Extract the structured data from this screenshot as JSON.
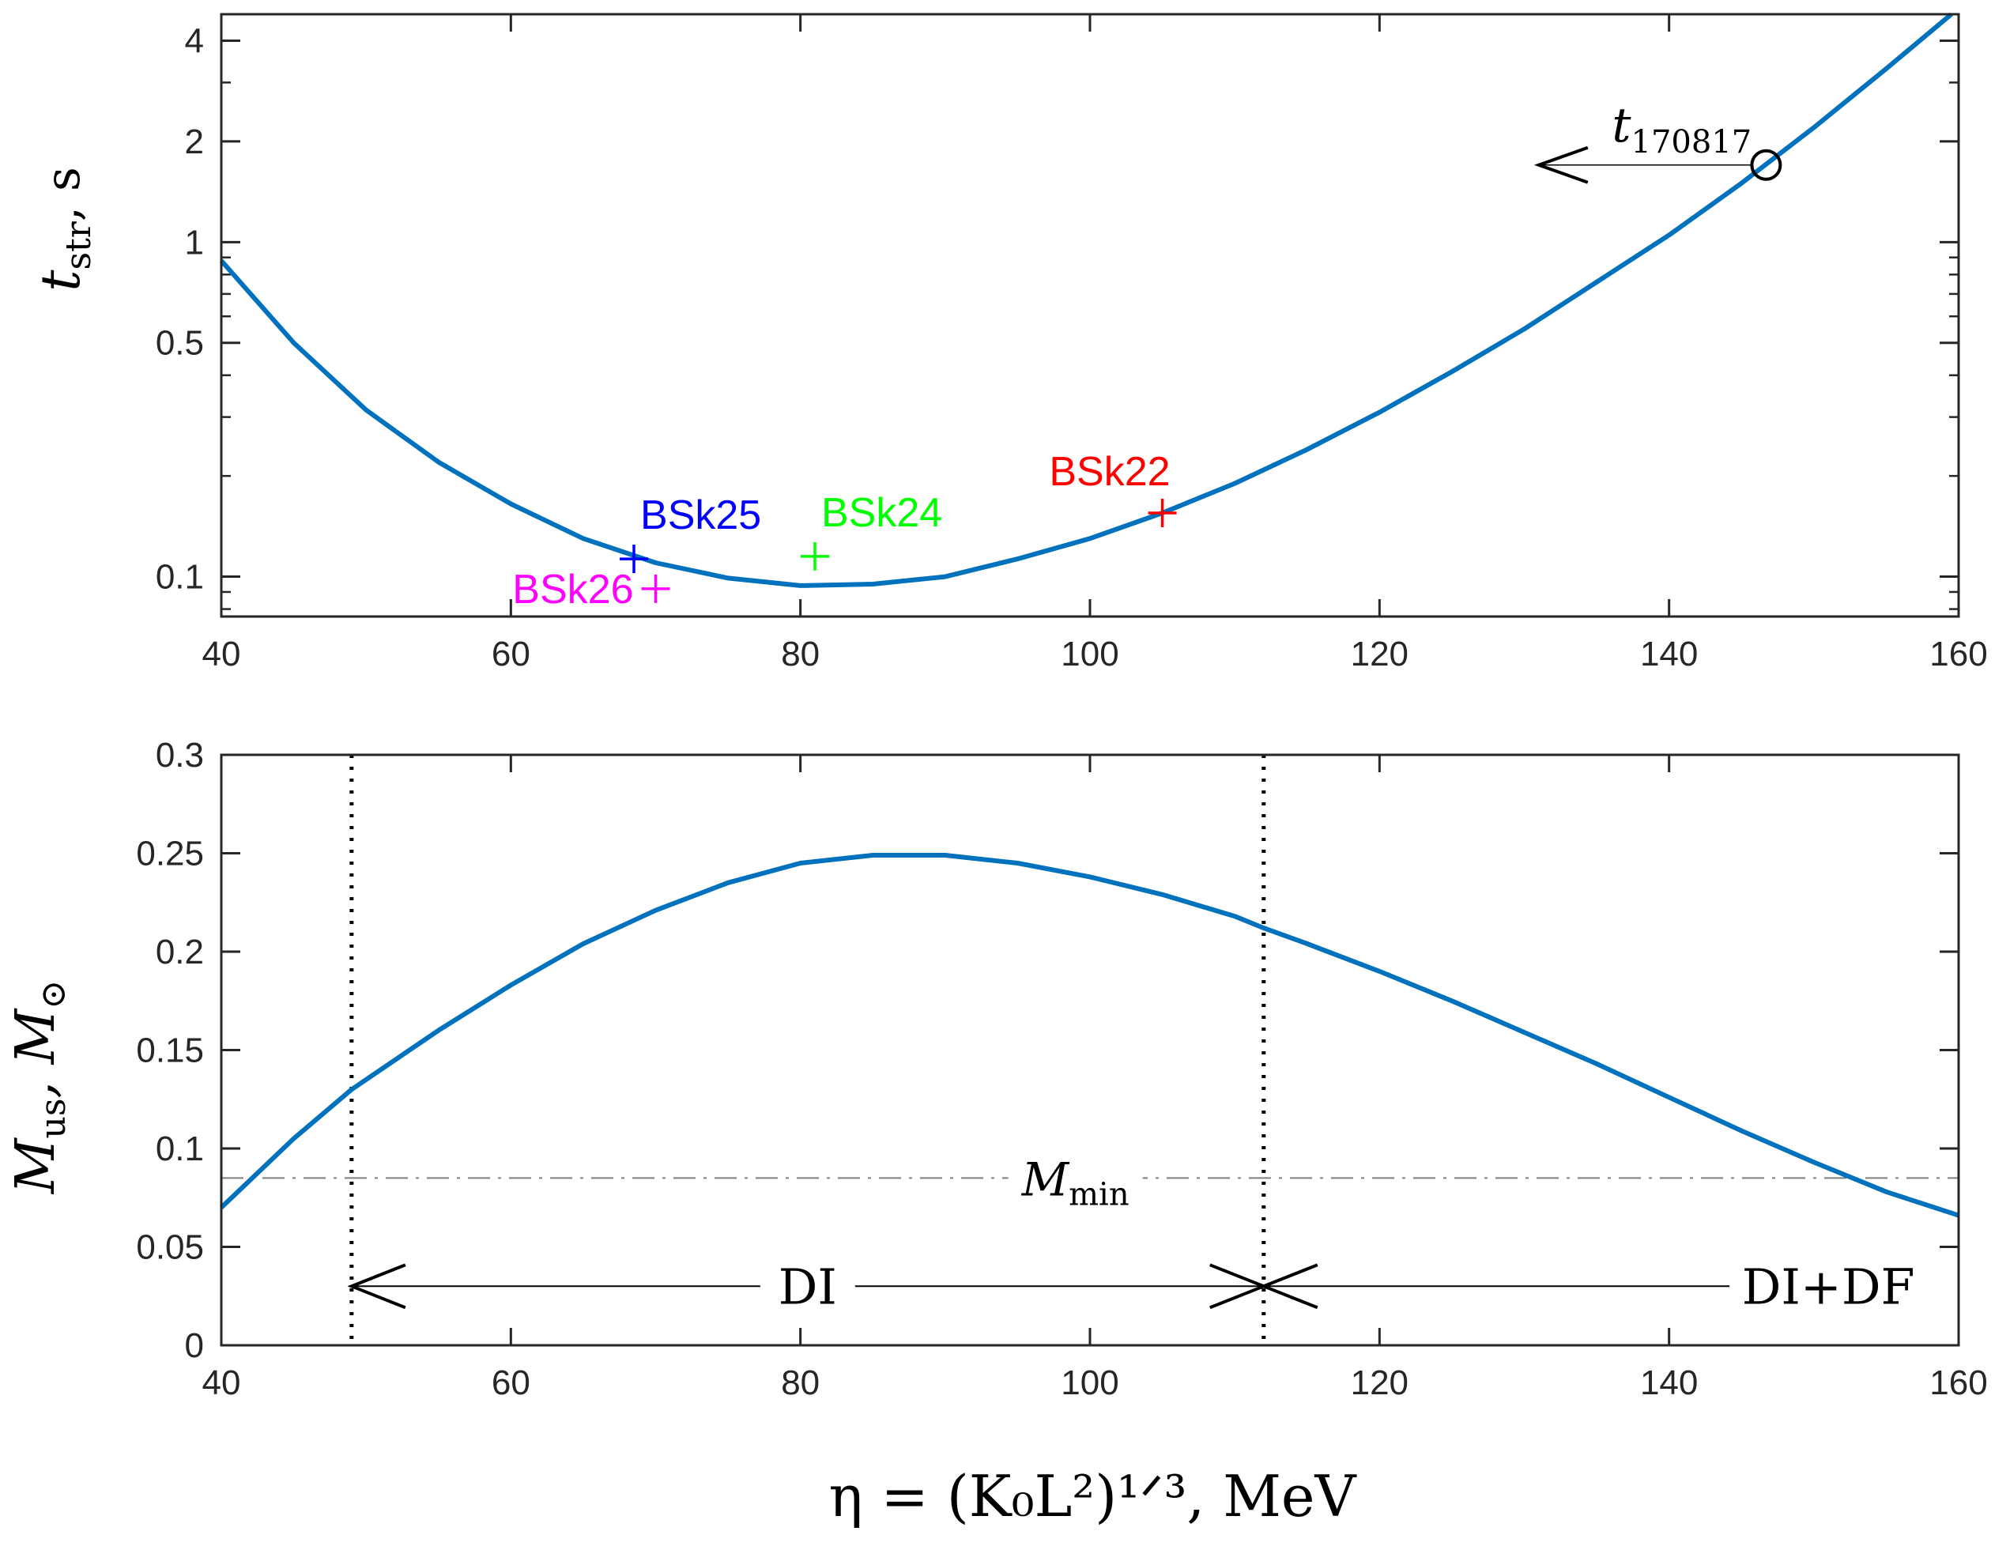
{
  "chart_data": [
    {
      "type": "line",
      "yscale": "log",
      "ylabel": {
        "main": "t",
        "sub": "str",
        "unit": ", s"
      },
      "xlim": [
        40,
        160
      ],
      "ylim": [
        0.076,
        4.8
      ],
      "x_ticks": [
        40,
        60,
        80,
        100,
        120,
        140,
        160
      ],
      "y_ticks": [
        0.1,
        0.5,
        1,
        2,
        4
      ],
      "y_tick_labels": [
        "0.1",
        "0.5",
        "1",
        "2",
        "4"
      ],
      "series": [
        {
          "color": "#0072BD",
          "x": [
            40,
            45,
            50,
            55,
            60,
            65,
            70,
            75,
            80,
            85,
            90,
            95,
            100,
            105,
            110,
            115,
            120,
            125,
            130,
            135,
            140,
            145,
            150,
            155,
            159.5
          ],
          "y": [
            0.88,
            0.5,
            0.315,
            0.22,
            0.165,
            0.13,
            0.11,
            0.099,
            0.094,
            0.095,
            0.1,
            0.113,
            0.13,
            0.155,
            0.19,
            0.24,
            0.31,
            0.41,
            0.55,
            0.76,
            1.05,
            1.5,
            2.2,
            3.3,
            4.8
          ]
        }
      ],
      "points": [
        {
          "label": "BSk22",
          "x": 105,
          "y": 0.155,
          "color": "#FF0000"
        },
        {
          "label": "BSk24",
          "x": 81,
          "y": 0.115,
          "color": "#00FF00"
        },
        {
          "label": "BSk25",
          "x": 68.5,
          "y": 0.113,
          "color": "#0000FF"
        },
        {
          "label": "BSk26",
          "x": 70,
          "y": 0.092,
          "color": "#FF00FF"
        }
      ],
      "annotation": {
        "label_main": "t",
        "label_sub": "170817",
        "marker_x": 146.7,
        "marker_y": 1.7,
        "arrow_to_x": 131
      }
    },
    {
      "type": "line",
      "ylabel": {
        "main": "M",
        "sub": "us",
        "unit_main": ", M",
        "unit_sub": "⊙"
      },
      "xlabel": "η = (K₀L²)¹ᐟ³, MeV",
      "xlim": [
        40,
        160
      ],
      "ylim": [
        0,
        0.3
      ],
      "x_ticks": [
        40,
        60,
        80,
        100,
        120,
        140,
        160
      ],
      "y_ticks": [
        0,
        0.05,
        0.1,
        0.15,
        0.2,
        0.25,
        0.3
      ],
      "y_tick_labels": [
        "0",
        "0.05",
        "0.1",
        "0.15",
        "0.2",
        "0.25",
        "0.3"
      ],
      "series": [
        {
          "color": "#0072BD",
          "x": [
            40,
            45,
            49,
            55,
            60,
            65,
            70,
            75,
            80,
            85,
            90,
            95,
            100,
            105,
            110,
            112,
            115,
            120,
            125,
            130,
            135,
            140,
            145,
            150,
            155,
            160
          ],
          "y": [
            0.07,
            0.105,
            0.13,
            0.16,
            0.183,
            0.204,
            0.221,
            0.235,
            0.245,
            0.249,
            0.249,
            0.245,
            0.238,
            0.229,
            0.218,
            0.212,
            0.204,
            0.19,
            0.175,
            0.159,
            0.143,
            0.126,
            0.109,
            0.093,
            0.078,
            0.066
          ]
        }
      ],
      "reference_line": {
        "y": 0.085,
        "label_main": "M",
        "label_sub": "min"
      },
      "vlines": [
        49,
        112
      ],
      "regions": [
        {
          "label": "DI",
          "from": 49,
          "to": 112
        },
        {
          "label": "DI+DF",
          "from": 112,
          "to": 160
        }
      ]
    }
  ]
}
